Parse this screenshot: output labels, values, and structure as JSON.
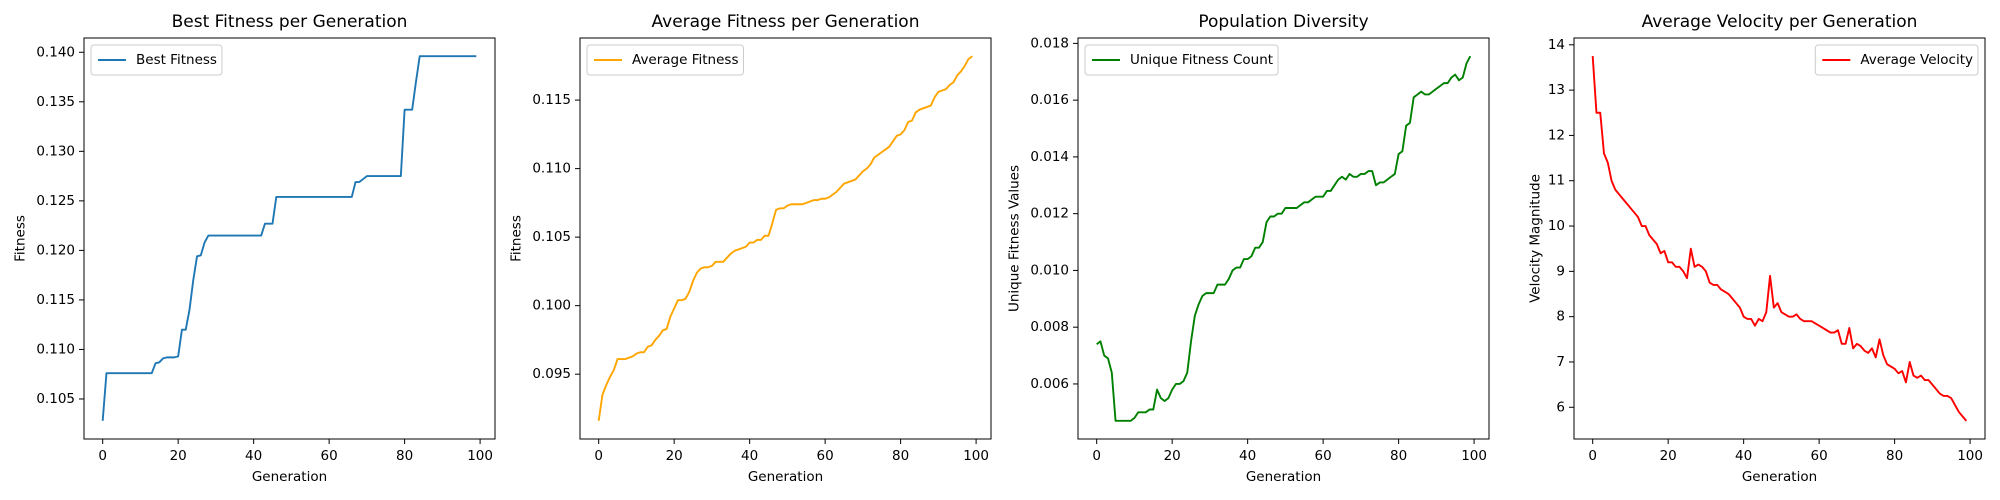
{
  "chart_data": [
    {
      "type": "line",
      "title": "Best Fitness per Generation",
      "xlabel": "Generation",
      "ylabel": "Fitness",
      "x": [
        0,
        1,
        2,
        3,
        4,
        5,
        6,
        7,
        8,
        9,
        10,
        11,
        12,
        13,
        14,
        15,
        16,
        17,
        18,
        19,
        20,
        21,
        22,
        23,
        24,
        25,
        26,
        27,
        28,
        29,
        30,
        31,
        32,
        33,
        34,
        35,
        36,
        37,
        38,
        39,
        40,
        41,
        42,
        43,
        44,
        45,
        46,
        47,
        48,
        49,
        50,
        51,
        52,
        53,
        54,
        55,
        56,
        57,
        58,
        59,
        60,
        61,
        62,
        63,
        64,
        65,
        66,
        67,
        68,
        69,
        70,
        71,
        72,
        73,
        74,
        75,
        76,
        77,
        78,
        79,
        80,
        81,
        82,
        83,
        84,
        85,
        86,
        87,
        88,
        89,
        90,
        91,
        92,
        93,
        94,
        95,
        96,
        97,
        98,
        99
      ],
      "series": [
        {
          "name": "Best Fitness",
          "color": "#1f77b4",
          "values": [
            0.1028,
            0.1076,
            0.1076,
            0.1076,
            0.1076,
            0.1076,
            0.1076,
            0.1076,
            0.1076,
            0.1076,
            0.1076,
            0.1076,
            0.1076,
            0.1076,
            0.1086,
            0.1087,
            0.1091,
            0.1092,
            0.1092,
            0.1092,
            0.1093,
            0.112,
            0.112,
            0.114,
            0.117,
            0.1194,
            0.1195,
            0.1208,
            0.1215,
            0.1215,
            0.1215,
            0.1215,
            0.1215,
            0.1215,
            0.1215,
            0.1215,
            0.1215,
            0.1215,
            0.1215,
            0.1215,
            0.1215,
            0.1215,
            0.1215,
            0.1227,
            0.1227,
            0.1227,
            0.1254,
            0.1254,
            0.1254,
            0.1254,
            0.1254,
            0.1254,
            0.1254,
            0.1254,
            0.1254,
            0.1254,
            0.1254,
            0.1254,
            0.1254,
            0.1254,
            0.1254,
            0.1254,
            0.1254,
            0.1254,
            0.1254,
            0.1254,
            0.1254,
            0.1269,
            0.1269,
            0.1272,
            0.1275,
            0.1275,
            0.1275,
            0.1275,
            0.1275,
            0.1275,
            0.1275,
            0.1275,
            0.1275,
            0.1275,
            0.1342,
            0.1342,
            0.1342,
            0.137,
            0.1396,
            0.1396,
            0.1396,
            0.1396,
            0.1396,
            0.1396,
            0.1396,
            0.1396,
            0.1396,
            0.1396,
            0.1396,
            0.1396,
            0.1396,
            0.1396,
            0.1396,
            0.1396
          ]
        }
      ],
      "xlim": [
        -4.95,
        103.95
      ],
      "ylim": [
        0.10096,
        0.14144
      ],
      "xticks": [
        0,
        20,
        40,
        60,
        80,
        100
      ],
      "yticks": [
        0.105,
        {
          "value": 0.11,
          "label": "0.110"
        },
        0.115,
        {
          "value": 0.12,
          "label": "0.120"
        },
        0.125,
        {
          "value": 0.13,
          "label": "0.130"
        },
        0.135,
        {
          "value": 0.14,
          "label": "0.140"
        }
      ],
      "legend": "upper left"
    },
    {
      "type": "line",
      "title": "Average Fitness per Generation",
      "xlabel": "Generation",
      "ylabel": "Fitness",
      "x": [
        0,
        1,
        2,
        3,
        4,
        5,
        6,
        7,
        8,
        9,
        10,
        11,
        12,
        13,
        14,
        15,
        16,
        17,
        18,
        19,
        20,
        21,
        22,
        23,
        24,
        25,
        26,
        27,
        28,
        29,
        30,
        31,
        32,
        33,
        34,
        35,
        36,
        37,
        38,
        39,
        40,
        41,
        42,
        43,
        44,
        45,
        46,
        47,
        48,
        49,
        50,
        51,
        52,
        53,
        54,
        55,
        56,
        57,
        58,
        59,
        60,
        61,
        62,
        63,
        64,
        65,
        66,
        67,
        68,
        69,
        70,
        71,
        72,
        73,
        74,
        75,
        76,
        77,
        78,
        79,
        80,
        81,
        82,
        83,
        84,
        85,
        86,
        87,
        88,
        89,
        90,
        91,
        92,
        93,
        94,
        95,
        96,
        97,
        98,
        99
      ],
      "series": [
        {
          "name": "Average Fitness",
          "color": "#ffa500",
          "values": [
            0.0916,
            0.0935,
            0.0942,
            0.0948,
            0.0953,
            0.0961,
            0.0961,
            0.0961,
            0.0962,
            0.0963,
            0.0965,
            0.0966,
            0.0966,
            0.097,
            0.0971,
            0.0975,
            0.0978,
            0.0982,
            0.0983,
            0.0992,
            0.0998,
            0.1004,
            0.1004,
            0.1005,
            0.101,
            0.1018,
            0.1024,
            0.1027,
            0.1028,
            0.1028,
            0.1029,
            0.1032,
            0.1032,
            0.1032,
            0.1035,
            0.1038,
            0.104,
            0.1041,
            0.1042,
            0.1043,
            0.1046,
            0.1046,
            0.1048,
            0.1048,
            0.1051,
            0.1051,
            0.106,
            0.107,
            0.1071,
            0.1071,
            0.1073,
            0.1074,
            0.1074,
            0.1074,
            0.1074,
            0.1075,
            0.1076,
            0.1077,
            0.1077,
            0.1078,
            0.1078,
            0.1079,
            0.1081,
            0.1083,
            0.1086,
            0.1089,
            0.109,
            0.1091,
            0.1092,
            0.1095,
            0.1098,
            0.11,
            0.1103,
            0.1108,
            0.111,
            0.1112,
            0.1114,
            0.1116,
            0.112,
            0.1124,
            0.1125,
            0.1128,
            0.1134,
            0.1135,
            0.1141,
            0.1143,
            0.1144,
            0.1145,
            0.1146,
            0.1152,
            0.1156,
            0.1157,
            0.1158,
            0.1161,
            0.1163,
            0.1168,
            0.1171,
            0.1175,
            0.118,
            0.1182
          ]
        }
      ],
      "xlim": [
        -4.95,
        103.95
      ],
      "ylim": [
        0.09027,
        0.11953
      ],
      "xticks": [
        0,
        20,
        40,
        60,
        80,
        100
      ],
      "yticks": [
        0.095,
        {
          "value": 0.1,
          "label": "0.100"
        },
        0.105,
        {
          "value": 0.11,
          "label": "0.110"
        },
        0.115
      ],
      "legend": "upper left"
    },
    {
      "type": "line",
      "title": "Population Diversity",
      "xlabel": "Generation",
      "ylabel": "Unique Fitness Values",
      "x": [
        0,
        1,
        2,
        3,
        4,
        5,
        6,
        7,
        8,
        9,
        10,
        11,
        12,
        13,
        14,
        15,
        16,
        17,
        18,
        19,
        20,
        21,
        22,
        23,
        24,
        25,
        26,
        27,
        28,
        29,
        30,
        31,
        32,
        33,
        34,
        35,
        36,
        37,
        38,
        39,
        40,
        41,
        42,
        43,
        44,
        45,
        46,
        47,
        48,
        49,
        50,
        51,
        52,
        53,
        54,
        55,
        56,
        57,
        58,
        59,
        60,
        61,
        62,
        63,
        64,
        65,
        66,
        67,
        68,
        69,
        70,
        71,
        72,
        73,
        74,
        75,
        76,
        77,
        78,
        79,
        80,
        81,
        82,
        83,
        84,
        85,
        86,
        87,
        88,
        89,
        90,
        91,
        92,
        93,
        94,
        95,
        96,
        97,
        98,
        99
      ],
      "series": [
        {
          "name": "Unique Fitness Count",
          "color": "#008000",
          "values": [
            0.0074,
            0.0075,
            0.007,
            0.0069,
            0.0064,
            0.0047,
            0.0047,
            0.0047,
            0.0047,
            0.0047,
            0.0048,
            0.005,
            0.005,
            0.005,
            0.0051,
            0.0051,
            0.0058,
            0.0055,
            0.0054,
            0.0055,
            0.0058,
            0.006,
            0.006,
            0.0061,
            0.0064,
            0.0075,
            0.0084,
            0.0088,
            0.0091,
            0.0092,
            0.0092,
            0.0092,
            0.0095,
            0.0095,
            0.0095,
            0.0097,
            0.01,
            0.0101,
            0.0101,
            0.0104,
            0.0104,
            0.0105,
            0.0108,
            0.0108,
            0.011,
            0.0117,
            0.0119,
            0.0119,
            0.012,
            0.012,
            0.0122,
            0.0122,
            0.0122,
            0.0122,
            0.0123,
            0.0124,
            0.0124,
            0.0125,
            0.0126,
            0.0126,
            0.0126,
            0.0128,
            0.0128,
            0.013,
            0.0132,
            0.0133,
            0.0132,
            0.0134,
            0.0133,
            0.0133,
            0.0134,
            0.0134,
            0.0135,
            0.0135,
            0.013,
            0.0131,
            0.0131,
            0.0132,
            0.0133,
            0.0134,
            0.0141,
            0.0142,
            0.0151,
            0.0152,
            0.0161,
            0.0162,
            0.0163,
            0.0162,
            0.0162,
            0.0163,
            0.0164,
            0.0165,
            0.0166,
            0.0166,
            0.0168,
            0.0169,
            0.0167,
            0.0168,
            0.0173,
            0.01755
          ]
        }
      ],
      "xlim": [
        -4.95,
        103.95
      ],
      "ylim": [
        0.00406,
        0.01819
      ],
      "xticks": [
        0,
        20,
        40,
        60,
        80,
        100
      ],
      "yticks": [
        0.006,
        0.008,
        {
          "value": 0.01,
          "label": "0.010"
        },
        0.012,
        0.014,
        0.016,
        0.018
      ],
      "legend": "upper left"
    },
    {
      "type": "line",
      "title": "Average Velocity per Generation",
      "xlabel": "Generation",
      "ylabel": "Velocity Magnitude",
      "x": [
        0,
        1,
        2,
        3,
        4,
        5,
        6,
        7,
        8,
        9,
        10,
        11,
        12,
        13,
        14,
        15,
        16,
        17,
        18,
        19,
        20,
        21,
        22,
        23,
        24,
        25,
        26,
        27,
        28,
        29,
        30,
        31,
        32,
        33,
        34,
        35,
        36,
        37,
        38,
        39,
        40,
        41,
        42,
        43,
        44,
        45,
        46,
        47,
        48,
        49,
        50,
        51,
        52,
        53,
        54,
        55,
        56,
        57,
        58,
        59,
        60,
        61,
        62,
        63,
        64,
        65,
        66,
        67,
        68,
        69,
        70,
        71,
        72,
        73,
        74,
        75,
        76,
        77,
        78,
        79,
        80,
        81,
        82,
        83,
        84,
        85,
        86,
        87,
        88,
        89,
        90,
        91,
        92,
        93,
        94,
        95,
        96,
        97,
        98,
        99
      ],
      "series": [
        {
          "name": "Average Velocity",
          "color": "#ff0000",
          "values": [
            13.75,
            12.5,
            12.5,
            11.6,
            11.4,
            11.0,
            10.8,
            10.7,
            10.6,
            10.5,
            10.4,
            10.3,
            10.2,
            10.0,
            10.0,
            9.8,
            9.7,
            9.6,
            9.4,
            9.45,
            9.2,
            9.2,
            9.1,
            9.1,
            9.0,
            8.85,
            9.5,
            9.1,
            9.15,
            9.1,
            9.0,
            8.75,
            8.7,
            8.7,
            8.6,
            8.55,
            8.5,
            8.4,
            8.3,
            8.2,
            8.0,
            7.95,
            7.95,
            7.8,
            7.95,
            7.9,
            8.1,
            8.9,
            8.2,
            8.3,
            8.1,
            8.05,
            8.0,
            8.0,
            8.05,
            7.95,
            7.9,
            7.9,
            7.9,
            7.85,
            7.8,
            7.75,
            7.7,
            7.65,
            7.65,
            7.7,
            7.4,
            7.4,
            7.75,
            7.3,
            7.4,
            7.35,
            7.25,
            7.2,
            7.3,
            7.1,
            7.5,
            7.15,
            6.95,
            6.9,
            6.85,
            6.75,
            6.8,
            6.55,
            7.0,
            6.7,
            6.65,
            6.7,
            6.6,
            6.6,
            6.5,
            6.4,
            6.3,
            6.25,
            6.25,
            6.2,
            6.05,
            5.9,
            5.8,
            5.7
          ]
        }
      ],
      "xlim": [
        -4.95,
        103.95
      ],
      "ylim": [
        5.3,
        14.15
      ],
      "xticks": [
        0,
        20,
        40,
        60,
        80,
        100
      ],
      "yticks": [
        6,
        7,
        8,
        9,
        10,
        11,
        12,
        13,
        14
      ],
      "legend": "upper right"
    }
  ]
}
